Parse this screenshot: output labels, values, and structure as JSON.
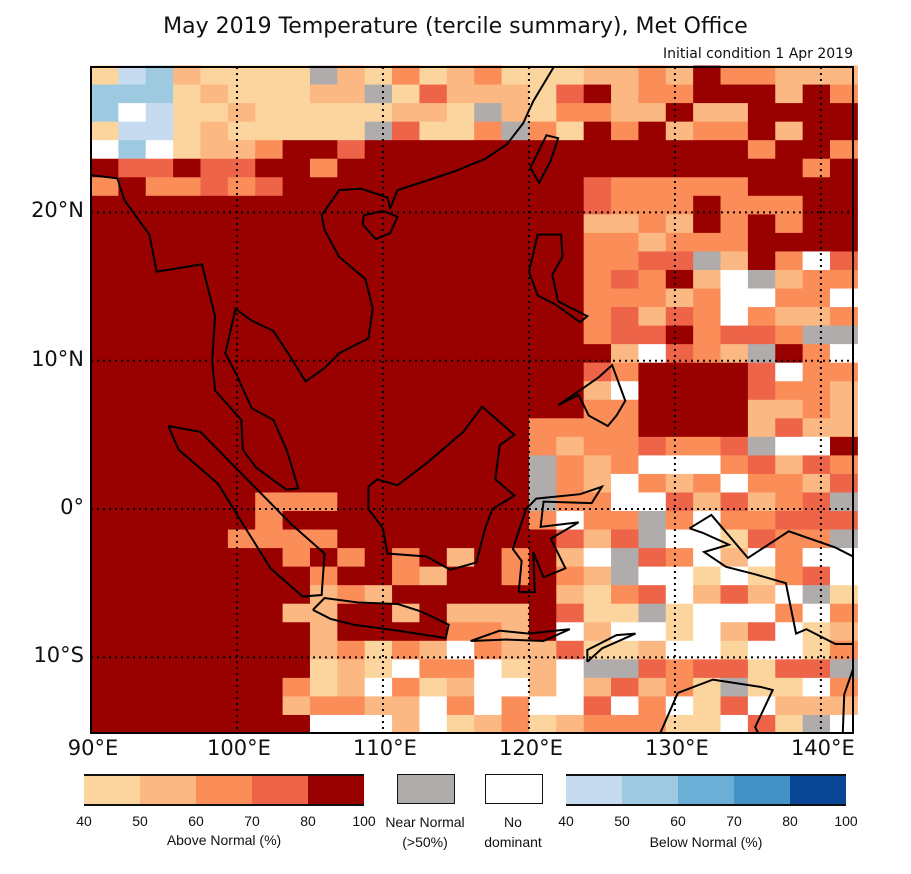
{
  "title": "May 2019 Temperature (tercile summary), Met Office",
  "subtitle": "Initial condition 1 Apr 2019",
  "map": {
    "lon_range": [
      90,
      142.2
    ],
    "lat_range": [
      -15.1,
      29.8
    ],
    "lon_labels": [
      "90°E",
      "100°E",
      "110°E",
      "120°E",
      "130°E",
      "140°E"
    ],
    "lat_labels": [
      "20°N",
      "10°N",
      "0°",
      "10°S"
    ],
    "gridlines": "dotted"
  },
  "legend": {
    "above": {
      "label": "Above Normal (%)",
      "ticks": [
        "40",
        "50",
        "60",
        "70",
        "80",
        "100"
      ],
      "colors": [
        "#fcd59e",
        "#fbb882",
        "#fb8d59",
        "#ee6449",
        "#990000"
      ]
    },
    "near": {
      "label_line1": "Near Normal",
      "label_line2": "(>50%)",
      "color": "#b0acac"
    },
    "none": {
      "label_line1": "No",
      "label_line2": "dominant",
      "color": "#ffffff"
    },
    "below": {
      "label": "Below Normal (%)",
      "ticks": [
        "40",
        "50",
        "60",
        "70",
        "80",
        "100"
      ],
      "colors": [
        "#c6dbef",
        "#9ecae1",
        "#6baed6",
        "#4292c6",
        "#084594"
      ]
    }
  }
}
